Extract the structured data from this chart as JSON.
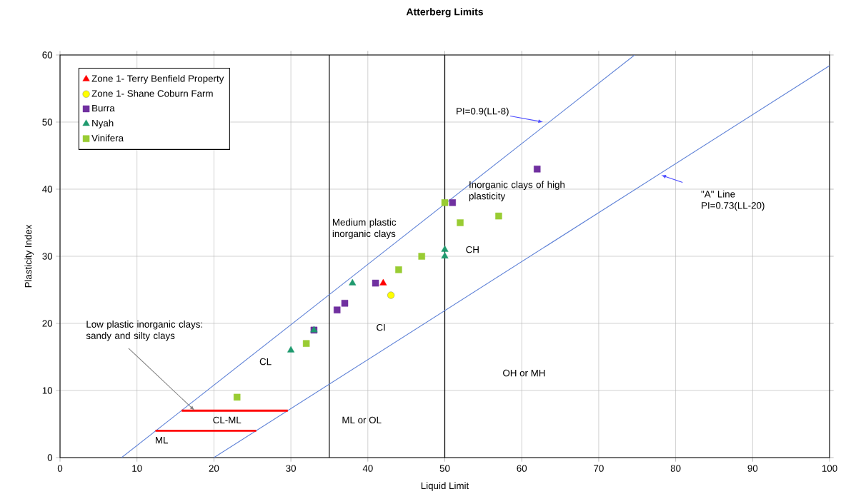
{
  "chart_data": {
    "type": "scatter",
    "title": "Atterberg Limits",
    "xlabel": "Liquid Limit",
    "ylabel": "Plasticity Index",
    "xlim": [
      0,
      100
    ],
    "ylim": [
      0,
      60
    ],
    "xticks": [
      0,
      10,
      20,
      30,
      40,
      50,
      60,
      70,
      80,
      90,
      100
    ],
    "yticks": [
      0,
      10,
      20,
      30,
      40,
      50,
      60
    ],
    "grid": true,
    "legend": "top left",
    "series": [
      {
        "name": "Zone 1- Terry Benfield Property",
        "color": "#ff0000",
        "marker": "triangle",
        "x": [
          42
        ],
        "values": [
          26
        ]
      },
      {
        "name": "Zone 1- Shane Coburn Farm",
        "color": "#ffff00",
        "marker": "circle",
        "x": [
          43
        ],
        "values": [
          24.2
        ]
      },
      {
        "name": "Burra",
        "color": "#7030a0",
        "marker": "square",
        "x": [
          33,
          36,
          37,
          41,
          51,
          62
        ],
        "values": [
          19,
          22,
          23,
          26,
          38,
          43
        ]
      },
      {
        "name": "Nyah",
        "color": "#1f9a6e",
        "marker": "triangle",
        "x": [
          30,
          33,
          38,
          50,
          50
        ],
        "values": [
          16,
          19,
          26,
          31,
          30
        ]
      },
      {
        "name": "Vinifera",
        "color": "#99cc33",
        "marker": "square",
        "x": [
          23,
          32,
          44,
          47,
          50,
          52,
          57
        ],
        "values": [
          9,
          17,
          28,
          30,
          38,
          35,
          36
        ]
      },
      {
        "type": "line",
        "color": "#5b7fd6",
        "marker": "none",
        "x": [
          8,
          74.67
        ],
        "values": [
          0,
          60
        ]
      },
      {
        "type": "line",
        "color": "#5b7fd6",
        "marker": "none",
        "x": [
          20,
          100
        ],
        "values": [
          0,
          58.4
        ]
      },
      {
        "type": "line",
        "color": "#ff0000",
        "marker": "none",
        "x": [
          15.8,
          29.6
        ],
        "values": [
          7,
          7
        ]
      },
      {
        "type": "line",
        "color": "#ff0000",
        "marker": "none",
        "x": [
          12.4,
          25.5
        ],
        "values": [
          4,
          4
        ]
      }
    ],
    "ref_lines": [
      {
        "axis": "x",
        "value": 35,
        "color": "#000000"
      },
      {
        "axis": "x",
        "value": 50,
        "color": "#000000"
      }
    ],
    "annotations": [
      "PI=0.9(LL-8)",
      "\"A\" Line PI=0.73(LL-20)",
      "Inorganic clays of high plasticity",
      "Medium plastic inorganic clays",
      "CH",
      "CI",
      "CL",
      "OH or MH",
      "ML or OL",
      "CL-ML",
      "ML",
      {
        "text": "Low plastic inorganic clays: sandy and silty clays",
        "x": 17.5,
        "y": 7
      }
    ]
  }
}
